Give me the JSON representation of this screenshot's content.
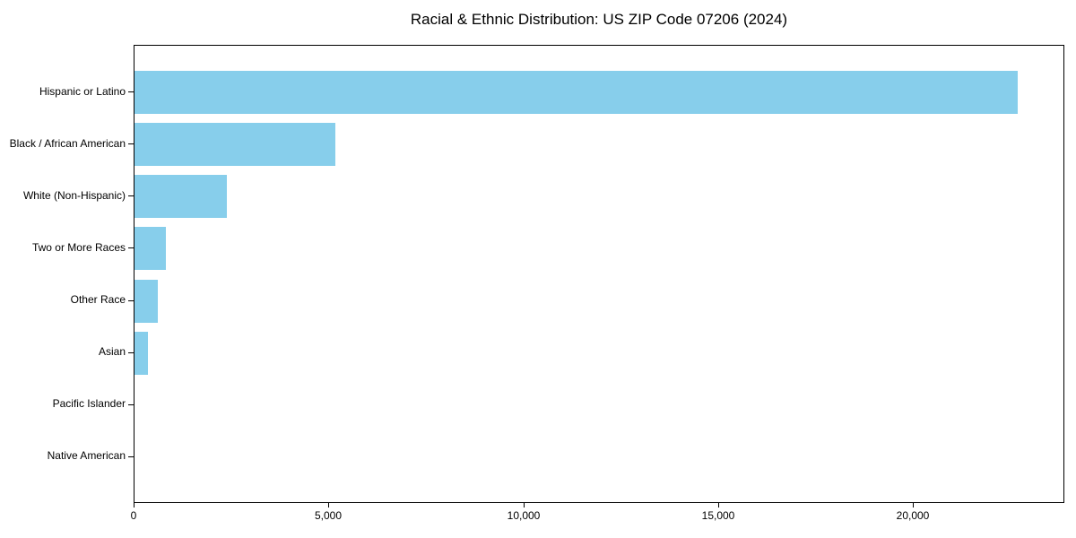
{
  "chart_data": {
    "type": "bar",
    "orientation": "horizontal",
    "title": "Racial & Ethnic Distribution: US ZIP Code 07206 (2024)",
    "categories": [
      "Hispanic or Latino",
      "Black / African American",
      "White (Non-Hispanic)",
      "Two or More Races",
      "Other Race",
      "Asian",
      "Pacific Islander",
      "Native American"
    ],
    "values": [
      22700,
      5170,
      2370,
      800,
      600,
      350,
      0,
      0
    ],
    "xlabel": "",
    "ylabel": "",
    "xlim": [
      0,
      23880
    ],
    "x_ticks": [
      0,
      5000,
      10000,
      15000,
      20000
    ],
    "x_tick_labels": [
      "0",
      "5,000",
      "10,000",
      "15,000",
      "20,000"
    ],
    "bar_color": "#87CEEB",
    "frame_color": "#000000",
    "text_color": "#000000",
    "background_color": "#ffffff",
    "grid": false,
    "legend": "none",
    "value_labels_shown": false
  }
}
